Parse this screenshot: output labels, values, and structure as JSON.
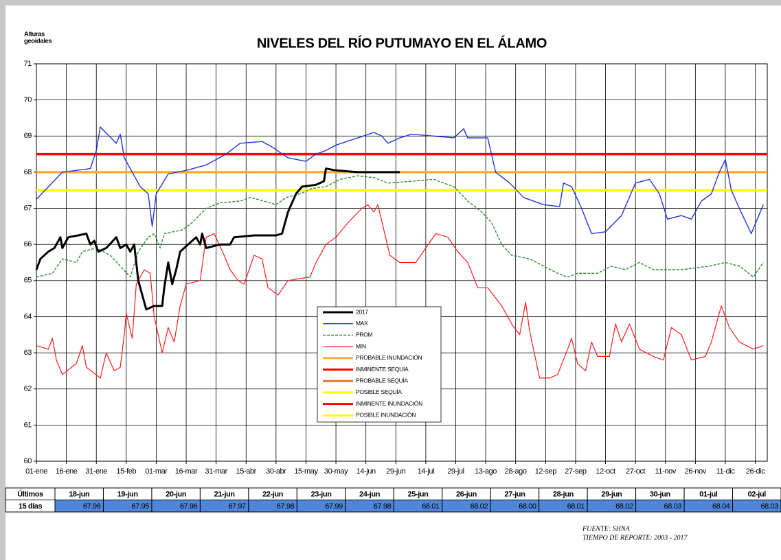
{
  "chart_data": {
    "type": "line",
    "title": "NIVELES DEL RÍO PUTUMAYO EN EL ÁLAMO",
    "y_label_lines": [
      "Alturas",
      "geoidales"
    ],
    "xlim": [
      0,
      366
    ],
    "xticks": [
      {
        "value": 0,
        "label": "01-ene"
      },
      {
        "value": 15,
        "label": "16-ene"
      },
      {
        "value": 30,
        "label": "31-ene"
      },
      {
        "value": 45,
        "label": "15-feb"
      },
      {
        "value": 60,
        "label": "01-mar"
      },
      {
        "value": 75,
        "label": "16-mar"
      },
      {
        "value": 90,
        "label": "31-mar"
      },
      {
        "value": 105,
        "label": "15-abr"
      },
      {
        "value": 120,
        "label": "30-abr"
      },
      {
        "value": 135,
        "label": "15-may"
      },
      {
        "value": 150,
        "label": "30-may"
      },
      {
        "value": 165,
        "label": "14-jun"
      },
      {
        "value": 180,
        "label": "29-jun"
      },
      {
        "value": 195,
        "label": "14-jul"
      },
      {
        "value": 210,
        "label": "29-jul"
      },
      {
        "value": 225,
        "label": "13-ago"
      },
      {
        "value": 240,
        "label": "28-ago"
      },
      {
        "value": 255,
        "label": "12-sep"
      },
      {
        "value": 270,
        "label": "27-sep"
      },
      {
        "value": 285,
        "label": "12-oct"
      },
      {
        "value": 300,
        "label": "27-oct"
      },
      {
        "value": 315,
        "label": "11-nov"
      },
      {
        "value": 330,
        "label": "26-nov"
      },
      {
        "value": 345,
        "label": "11-dic"
      },
      {
        "value": 360,
        "label": "26-dic"
      }
    ],
    "ylim": [
      60,
      71
    ],
    "yticks": [
      60,
      61,
      62,
      63,
      64,
      65,
      66,
      67,
      68,
      69,
      70,
      71
    ],
    "grid": true,
    "series": [
      {
        "name": "2017",
        "color": "#000000",
        "width": 3,
        "line_style": "solid",
        "x": [
          0,
          2,
          6,
          9,
          12,
          13,
          16,
          21,
          25,
          27,
          29,
          31,
          35,
          40,
          42,
          45,
          47,
          49,
          51,
          52,
          55,
          59,
          63,
          64,
          66,
          68,
          70,
          72,
          76,
          80,
          82,
          83,
          85,
          92,
          97,
          99,
          109,
          120,
          123,
          126,
          130,
          133,
          140,
          144,
          145,
          150,
          161,
          171,
          182
        ],
        "values": [
          65.3,
          65.6,
          65.8,
          65.9,
          66.2,
          65.9,
          66.2,
          66.25,
          66.3,
          66.0,
          66.1,
          65.8,
          65.9,
          66.2,
          65.9,
          66.0,
          65.8,
          66.0,
          65.0,
          64.8,
          64.2,
          64.3,
          64.3,
          64.8,
          65.5,
          64.9,
          65.3,
          65.8,
          66.0,
          66.2,
          66.0,
          66.3,
          65.9,
          66.0,
          66.0,
          66.2,
          66.25,
          66.25,
          66.3,
          66.9,
          67.4,
          67.6,
          67.65,
          67.75,
          68.1,
          68.05,
          68.0,
          68.0,
          68.0
        ]
      },
      {
        "name": "MAX",
        "color": "#2233dd",
        "width": 1.4,
        "line_style": "solid",
        "x": [
          0,
          13,
          27,
          30,
          32,
          40,
          42,
          44,
          52,
          56,
          58,
          60,
          66,
          75,
          85,
          95,
          102,
          113,
          118,
          126,
          135,
          140,
          145,
          150,
          161,
          169,
          173,
          176,
          182,
          188,
          199,
          209,
          214,
          216,
          226,
          230,
          237,
          244,
          254,
          262,
          264,
          268,
          273,
          278,
          285,
          293,
          300,
          307,
          312,
          316,
          323,
          328,
          333,
          338,
          342,
          345,
          348,
          352,
          358,
          364
        ],
        "values": [
          67.25,
          68.0,
          68.1,
          68.6,
          69.25,
          68.8,
          69.05,
          68.4,
          67.6,
          67.4,
          66.5,
          67.4,
          67.95,
          68.05,
          68.2,
          68.5,
          68.8,
          68.85,
          68.7,
          68.4,
          68.3,
          68.5,
          68.6,
          68.75,
          68.95,
          69.1,
          69.0,
          68.8,
          68.95,
          69.05,
          69.0,
          68.95,
          69.2,
          68.95,
          68.95,
          68.0,
          67.7,
          67.3,
          67.1,
          67.05,
          67.7,
          67.6,
          67.0,
          66.3,
          66.35,
          66.8,
          67.7,
          67.8,
          67.4,
          66.7,
          66.8,
          66.7,
          67.2,
          67.4,
          68.0,
          68.35,
          67.5,
          67.0,
          66.3,
          67.1
        ]
      },
      {
        "name": "PROM",
        "color": "#2e8b2e",
        "width": 1.4,
        "line_style": "dashed",
        "x": [
          0,
          8,
          13,
          20,
          23,
          30,
          37,
          42,
          47,
          51,
          56,
          59,
          62,
          64,
          73,
          78,
          85,
          92,
          102,
          107,
          114,
          120,
          125,
          132,
          138,
          145,
          152,
          161,
          169,
          176,
          188,
          199,
          209,
          216,
          223,
          228,
          233,
          238,
          247,
          254,
          261,
          266,
          271,
          281,
          288,
          295,
          302,
          309,
          323,
          337,
          345,
          352,
          359,
          364
        ],
        "values": [
          65.1,
          65.2,
          65.6,
          65.5,
          65.8,
          65.9,
          65.7,
          65.4,
          65.1,
          65.8,
          66.2,
          66.3,
          65.9,
          66.3,
          66.4,
          66.6,
          67.0,
          67.15,
          67.2,
          67.3,
          67.2,
          67.1,
          67.3,
          67.4,
          67.55,
          67.6,
          67.8,
          67.9,
          67.85,
          67.7,
          67.75,
          67.8,
          67.6,
          67.2,
          66.9,
          66.6,
          66.0,
          65.7,
          65.6,
          65.4,
          65.2,
          65.1,
          65.2,
          65.2,
          65.4,
          65.3,
          65.5,
          65.3,
          65.3,
          65.4,
          65.5,
          65.4,
          65.1,
          65.5
        ]
      },
      {
        "name": "MIN",
        "color": "#ff1a1a",
        "width": 1.2,
        "line_style": "solid",
        "x": [
          0,
          6,
          8,
          10,
          13,
          20,
          23,
          25,
          32,
          35,
          39,
          42,
          44,
          45,
          48,
          50,
          54,
          57,
          59,
          63,
          66,
          69,
          72,
          75,
          82,
          85,
          89,
          94,
          97,
          101,
          104,
          109,
          113,
          116,
          121,
          126,
          137,
          140,
          145,
          150,
          156,
          163,
          166,
          169,
          171,
          177,
          182,
          190,
          195,
          200,
          206,
          211,
          216,
          221,
          226,
          233,
          238,
          242,
          245,
          247,
          252,
          257,
          261,
          266,
          268,
          271,
          275,
          278,
          281,
          287,
          290,
          293,
          297,
          302,
          309,
          314,
          318,
          323,
          328,
          335,
          338,
          343,
          347,
          352,
          359,
          364
        ],
        "values": [
          63.2,
          63.1,
          63.4,
          62.8,
          62.4,
          62.7,
          63.2,
          62.6,
          62.3,
          63.0,
          62.5,
          62.6,
          63.5,
          64.1,
          63.4,
          64.9,
          65.3,
          65.2,
          64.0,
          63.0,
          63.7,
          63.3,
          64.3,
          64.9,
          65.0,
          66.2,
          66.3,
          65.7,
          65.3,
          65.0,
          64.9,
          65.7,
          65.6,
          64.8,
          64.6,
          65.0,
          65.1,
          65.5,
          66.0,
          66.2,
          66.6,
          67.0,
          67.1,
          66.9,
          67.1,
          65.7,
          65.5,
          65.5,
          65.9,
          66.3,
          66.2,
          65.8,
          65.5,
          64.8,
          64.8,
          64.3,
          63.8,
          63.5,
          64.4,
          63.6,
          62.3,
          62.3,
          62.4,
          63.1,
          63.4,
          62.7,
          62.5,
          63.3,
          62.9,
          62.9,
          63.8,
          63.3,
          63.8,
          63.1,
          62.9,
          62.8,
          63.7,
          63.5,
          62.8,
          62.9,
          63.3,
          64.3,
          63.7,
          63.3,
          63.1,
          63.2
        ]
      }
    ],
    "thresholds": [
      {
        "name": "PROBABLE INUNDACIÓN",
        "color": "#f5b031",
        "value": 68.0
      },
      {
        "name": "INMINENTE SEQUÍA",
        "color": "#ff0000",
        "value": null
      },
      {
        "name": "PROBABLE SEQUÍA",
        "color": "#e8772e",
        "value": null
      },
      {
        "name": "POSIBLE SEQUÍA",
        "color": "#ffff00",
        "value": null
      },
      {
        "name": "INMINENTE INUNDACIÓN",
        "color": "#ff0000",
        "value": 68.5
      },
      {
        "name": "POSIBLE INUNDACIÓN",
        "color": "#ffff00",
        "value": 67.5
      }
    ]
  },
  "table": {
    "header": [
      "Últimos",
      "18-jun",
      "19-jun",
      "20-jun",
      "21-jun",
      "22-jun",
      "23-jun",
      "24-jun",
      "25-jun",
      "26-jun",
      "27-jun",
      "28-jun",
      "29-jun",
      "30-jun",
      "01-jul",
      "02-jul"
    ],
    "row": [
      "15 días",
      "67.96",
      "67.95",
      "67.96",
      "67.97",
      "67.98",
      "67.99",
      "67.98",
      "68.01",
      "68.02",
      "68.00",
      "68.01",
      "68.02",
      "68.03",
      "68.04",
      "68.03"
    ]
  },
  "footer": {
    "source": "FUENTE: SHNA",
    "report": "TIEMPO DE REPORTE: 2003 - 2017"
  }
}
